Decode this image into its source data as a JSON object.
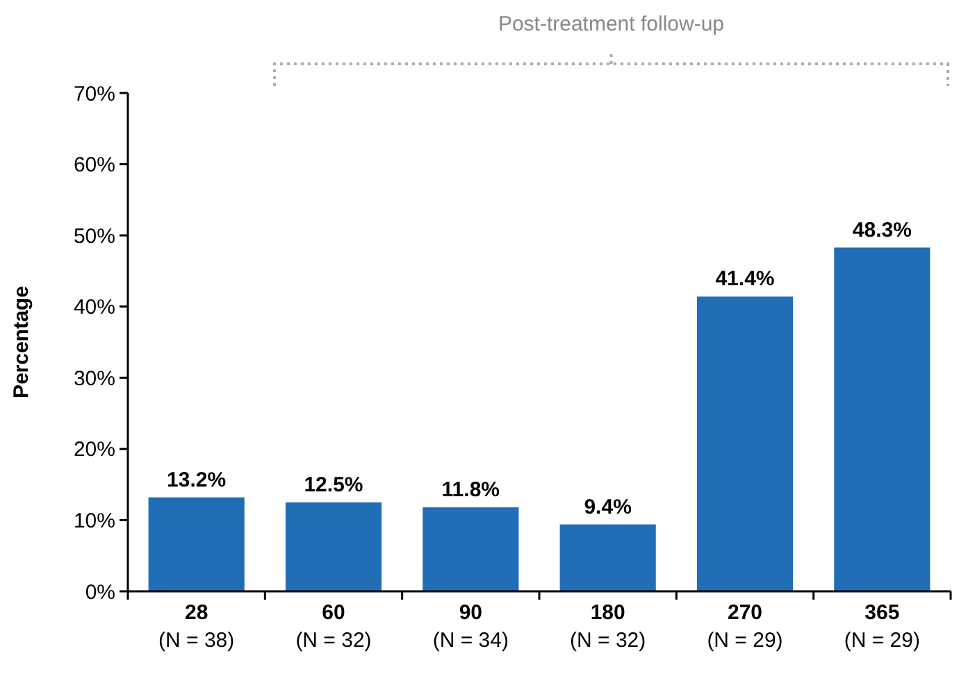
{
  "chart_data": {
    "type": "bar",
    "ylabel": "Percentage",
    "categories": [
      "28\n(N = 38)",
      "60\n(N = 32)",
      "90\n(N = 34)",
      "180\n(N = 32)",
      "270\n(N = 29)",
      "365\n(N = 29)"
    ],
    "values": [
      13.2,
      12.5,
      11.8,
      9.4,
      41.4,
      48.3
    ],
    "value_labels": [
      "13.2%",
      "12.5%",
      "11.8%",
      "9.4%",
      "41.4%",
      "48.3%"
    ],
    "color": "#1f6eb6",
    "ylim": [
      0,
      70
    ],
    "yticks": [
      {
        "value": 0,
        "label": "0%"
      },
      {
        "value": 10,
        "label": "10%"
      },
      {
        "value": 20,
        "label": "20%"
      },
      {
        "value": 30,
        "label": "30%"
      },
      {
        "value": 40,
        "label": "40%"
      },
      {
        "value": 50,
        "label": "50%"
      },
      {
        "value": 60,
        "label": "60%"
      },
      {
        "value": 70,
        "label": "70%"
      }
    ],
    "grid": false,
    "annotations": [
      "Post-treatment follow-up"
    ]
  }
}
